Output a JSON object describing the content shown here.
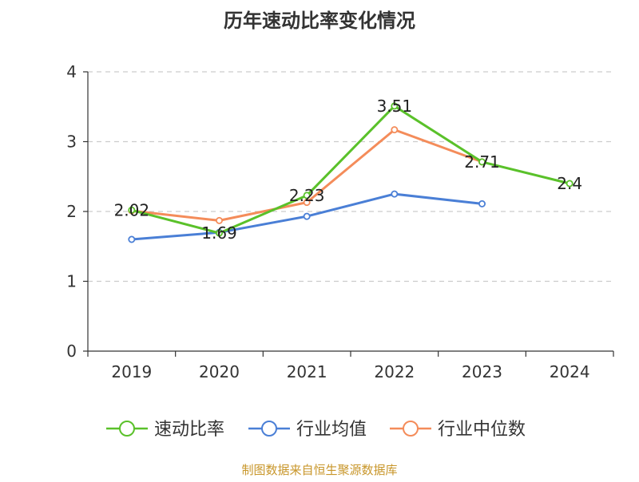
{
  "chart_data": {
    "type": "line",
    "title": "历年速动比率变化情况",
    "source": "制图数据来自恒生聚源数据库",
    "xlabel": "",
    "ylabel": "",
    "categories": [
      "2019",
      "2020",
      "2021",
      "2022",
      "2023",
      "2024"
    ],
    "ylim": [
      0,
      4
    ],
    "yticks": [
      0,
      1,
      2,
      3,
      4
    ],
    "grid": true,
    "legend_position": "bottom",
    "series": [
      {
        "name": "速动比率",
        "color": "#5ac12a",
        "values": [
          2.02,
          1.69,
          2.23,
          3.51,
          2.71,
          2.4
        ],
        "labels": [
          "2.02",
          "1.69",
          "2.23",
          "3.51",
          "2.71",
          "2.4"
        ]
      },
      {
        "name": "行业均值",
        "color": "#4a7fd6",
        "values": [
          1.6,
          1.7,
          1.93,
          2.25,
          2.11,
          null
        ]
      },
      {
        "name": "行业中位数",
        "color": "#f48c5a",
        "values": [
          2.01,
          1.87,
          2.13,
          3.17,
          2.71,
          null
        ]
      }
    ]
  }
}
